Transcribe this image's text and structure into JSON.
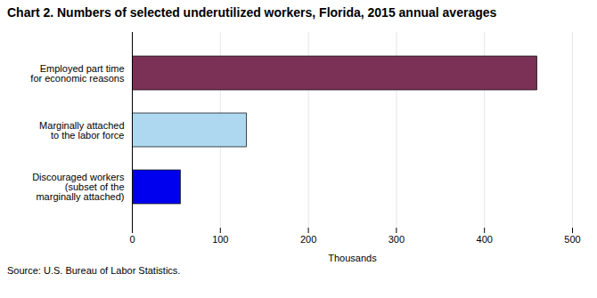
{
  "chart_data": {
    "type": "bar",
    "orientation": "horizontal",
    "title": "Chart 2. Numbers of selected underutilized workers, Florida, 2015  annual averages",
    "source": "Source: U.S. Bureau of Labor Statistics.",
    "categories": [
      "Employed part time\nfor economic reasons",
      "Marginally attached\nto the labor force",
      "Discouraged workers\n(subset of the\nmarginally attached)"
    ],
    "values": [
      460,
      130,
      55
    ],
    "colors": [
      "#7b3055",
      "#add8f0",
      "#0000ee"
    ],
    "xlabel": "Thousands",
    "xlim": [
      0,
      500
    ],
    "xticks": [
      0,
      100,
      200,
      300,
      400,
      500
    ],
    "grid": true
  }
}
